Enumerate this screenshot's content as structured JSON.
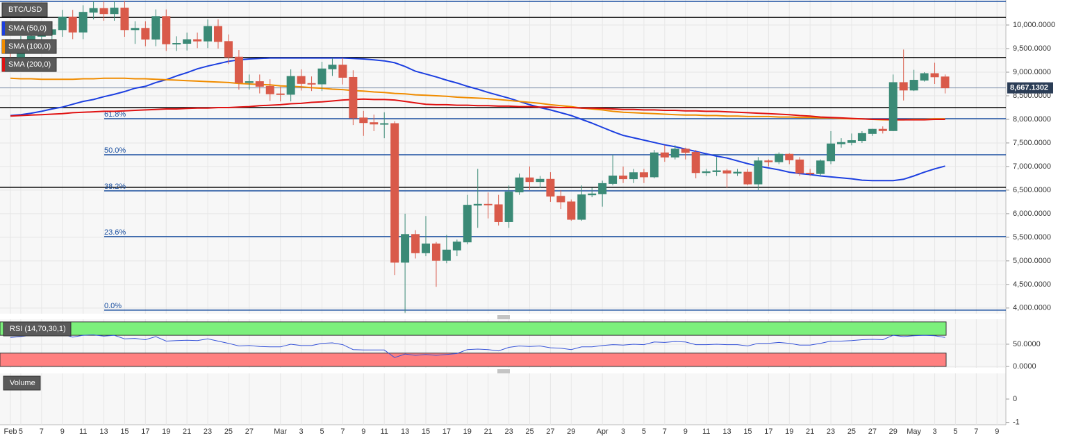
{
  "chart_data": [
    {
      "type": "candlestick",
      "title": "BTC/USD",
      "categories": [
        "Feb",
        "5",
        null,
        "7",
        null,
        "9",
        null,
        "11",
        null,
        "13",
        null,
        "15",
        null,
        "17",
        null,
        "19",
        null,
        "21",
        null,
        "23",
        null,
        "25",
        null,
        "27",
        null,
        null,
        "Mar",
        null,
        "3",
        null,
        "5",
        null,
        "7",
        null,
        "9",
        null,
        "11",
        null,
        "13",
        null,
        "15",
        null,
        "17",
        null,
        "19",
        null,
        "21",
        null,
        "23",
        null,
        "25",
        null,
        "27",
        null,
        "29",
        null,
        null,
        "Apr",
        null,
        "3",
        null,
        "5",
        null,
        "7",
        null,
        "9",
        null,
        "11",
        null,
        "13",
        null,
        "15",
        null,
        "17",
        null,
        "19",
        null,
        "21",
        null,
        "23",
        null,
        "25",
        null,
        "27",
        null,
        "29",
        null,
        "May",
        null,
        "3",
        null,
        "5",
        null,
        "7",
        null,
        "9"
      ],
      "open": [
        9290,
        9165,
        9615,
        9760,
        9800,
        9900,
        10170,
        9850,
        10270,
        10350,
        10240,
        10360,
        9900,
        9930,
        9700,
        10180,
        9600,
        9610,
        9690,
        9660,
        9970,
        9650,
        9320,
        8780,
        8800,
        8700,
        8540,
        8530,
        8910,
        8760,
        8750,
        9070,
        9150,
        8890,
        8030,
        7930,
        7900,
        7910,
        4970,
        5560,
        5170,
        5360,
        5010,
        5230,
        5400,
        6180,
        6200,
        6190,
        5830,
        6460,
        6760,
        6680,
        6730,
        6370,
        6250,
        5880,
        6400,
        6420,
        6640,
        6800,
        6740,
        6870,
        6780,
        7290,
        7200,
        7370,
        7300,
        6870,
        6890,
        6910,
        6860,
        6880,
        6630,
        7120,
        7100,
        7260,
        7140,
        6860,
        6850,
        7120,
        7480,
        7510,
        7550,
        7700,
        7790,
        7760,
        8780,
        8620,
        8830,
        8970,
        8900,
        null,
        null,
        null,
        null,
        null
      ],
      "high": [
        9440,
        9765,
        9910,
        9950,
        10050,
        10320,
        10320,
        10420,
        10500,
        10500,
        10510,
        10510,
        10080,
        10080,
        10330,
        10330,
        9760,
        9840,
        9840,
        10120,
        10120,
        9800,
        9470,
        8950,
        8950,
        8850,
        8690,
        9060,
        9060,
        8910,
        9220,
        9300,
        9300,
        9040,
        8180,
        8100,
        8150,
        7960,
        6000,
        5650,
        5950,
        5400,
        5550,
        5450,
        6400,
        6950,
        6450,
        6400,
        6600,
        6850,
        7000,
        6800,
        6880,
        6500,
        6300,
        6600,
        6550,
        6700,
        7250,
        7000,
        6950,
        6950,
        7350,
        7450,
        7450,
        7400,
        7350,
        6950,
        7200,
        6950,
        6950,
        6950,
        7200,
        7150,
        7300,
        7280,
        7200,
        6950,
        7150,
        7750,
        7600,
        7700,
        7750,
        7800,
        7850,
        8950,
        9480,
        9050,
        9000,
        9200,
        8950,
        null,
        null,
        null,
        null,
        null
      ],
      "low": [
        9015,
        9015,
        9465,
        9610,
        9650,
        9750,
        9700,
        9700,
        10120,
        10090,
        10090,
        9750,
        9600,
        9550,
        9550,
        9450,
        9450,
        9460,
        9510,
        9510,
        9500,
        9170,
        8630,
        8630,
        8550,
        8390,
        8380,
        8380,
        8610,
        8600,
        8600,
        8920,
        8740,
        7880,
        7650,
        7750,
        7600,
        4700,
        3900,
        5050,
        5100,
        4450,
        4950,
        5100,
        5350,
        5700,
        5900,
        5750,
        5700,
        6400,
        6500,
        6550,
        6250,
        6100,
        5850,
        5850,
        6350,
        6150,
        6600,
        6650,
        6650,
        6650,
        6750,
        7100,
        7150,
        7150,
        6750,
        6800,
        6800,
        6550,
        6800,
        6600,
        6500,
        7000,
        7050,
        7050,
        6800,
        6800,
        6800,
        7050,
        7400,
        7450,
        7500,
        7650,
        7700,
        7750,
        8400,
        8600,
        8800,
        8750,
        8550,
        null,
        null,
        null,
        null,
        null
      ],
      "close": [
        9165,
        9615,
        9760,
        9800,
        9900,
        10170,
        9850,
        10270,
        10350,
        10240,
        10360,
        9900,
        9930,
        9700,
        10180,
        9600,
        9610,
        9690,
        9660,
        9970,
        9650,
        9320,
        8780,
        8800,
        8700,
        8540,
        8530,
        8910,
        8760,
        8750,
        9070,
        9150,
        8890,
        8030,
        7930,
        7900,
        7910,
        4970,
        5560,
        5170,
        5360,
        5010,
        5230,
        5400,
        6180,
        6200,
        6190,
        5830,
        6460,
        6760,
        6680,
        6730,
        6370,
        6250,
        5880,
        6400,
        6420,
        6640,
        6800,
        6740,
        6870,
        6780,
        7290,
        7200,
        7370,
        7300,
        6870,
        6890,
        6910,
        6860,
        6880,
        6630,
        7120,
        7100,
        7260,
        7140,
        6860,
        6850,
        7120,
        7480,
        7510,
        7550,
        7700,
        7790,
        7760,
        8780,
        8620,
        8830,
        8970,
        8900,
        8667,
        null,
        null,
        null,
        null,
        null
      ],
      "up_color": "#3b8a76",
      "down_color": "#d95a4a",
      "ylim": [
        3880,
        10530
      ],
      "yticks": [
        {
          "value": 4000,
          "label": "4,000.0000"
        },
        {
          "value": 4500,
          "label": "4,500.0000"
        },
        {
          "value": 5000,
          "label": "5,000.0000"
        },
        {
          "value": 5500,
          "label": "5,500.0000"
        },
        {
          "value": 6000,
          "label": "6,000.0000"
        },
        {
          "value": 6500,
          "label": "6,500.0000"
        },
        {
          "value": 7000,
          "label": "7,000.0000"
        },
        {
          "value": 7500,
          "label": "7,500.0000"
        },
        {
          "value": 8000,
          "label": "8,000.0000"
        },
        {
          "value": 8500,
          "label": "8,500.0000"
        },
        {
          "value": 9000,
          "label": "9,000.0000"
        },
        {
          "value": 9500,
          "label": "9,500.0000"
        },
        {
          "value": 10000,
          "label": "10,000.0000"
        }
      ],
      "grid": true,
      "overlays": [
        {
          "name": "SMA (50,0)",
          "color": "#1c3fe0",
          "values": [
            8080,
            8100,
            8130,
            8170,
            8220,
            8260,
            8320,
            8380,
            8420,
            8480,
            8530,
            8590,
            8660,
            8700,
            8780,
            8840,
            8920,
            8990,
            9070,
            9130,
            9180,
            9230,
            9260,
            9280,
            9290,
            9300,
            9300,
            9300,
            9300,
            9300,
            9300,
            9300,
            9300,
            9290,
            9280,
            9260,
            9240,
            9200,
            9120,
            9020,
            8960,
            8900,
            8830,
            8770,
            8700,
            8640,
            8570,
            8510,
            8450,
            8380,
            8310,
            8250,
            8200,
            8140,
            8080,
            8000,
            7920,
            7830,
            7740,
            7660,
            7610,
            7560,
            7510,
            7460,
            7420,
            7370,
            7320,
            7270,
            7220,
            7180,
            7120,
            7060,
            7010,
            6970,
            6930,
            6880,
            6850,
            6830,
            6800,
            6780,
            6760,
            6740,
            6710,
            6700,
            6700,
            6700,
            6730,
            6800,
            6880,
            6950,
            7010,
            null,
            null,
            null,
            null,
            null
          ]
        },
        {
          "name": "SMA (100,0)",
          "color": "#f08c00",
          "values": [
            8870,
            8860,
            8860,
            8850,
            8850,
            8850,
            8850,
            8860,
            8860,
            8870,
            8870,
            8870,
            8860,
            8860,
            8850,
            8840,
            8830,
            8820,
            8810,
            8800,
            8790,
            8780,
            8760,
            8750,
            8740,
            8730,
            8710,
            8700,
            8690,
            8670,
            8660,
            8640,
            8630,
            8610,
            8600,
            8580,
            8570,
            8550,
            8540,
            8520,
            8510,
            8500,
            8490,
            8470,
            8460,
            8450,
            8440,
            8420,
            8400,
            8380,
            8360,
            8340,
            8310,
            8290,
            8270,
            8240,
            8220,
            8200,
            8170,
            8150,
            8140,
            8130,
            8120,
            8110,
            8100,
            8090,
            8090,
            8080,
            8080,
            8070,
            8070,
            8060,
            8060,
            8060,
            8050,
            8050,
            8040,
            8040,
            8030,
            8030,
            8020,
            8010,
            8010,
            8000,
            7990,
            7990,
            7990,
            8000,
            8000,
            8010,
            8010,
            null,
            null,
            null,
            null,
            null
          ]
        },
        {
          "name": "SMA (200,0)",
          "color": "#e01212",
          "values": [
            8070,
            8080,
            8090,
            8100,
            8110,
            8120,
            8140,
            8150,
            8160,
            8170,
            8170,
            8180,
            8190,
            8200,
            8210,
            8220,
            8220,
            8230,
            8240,
            8240,
            8250,
            8250,
            8260,
            8270,
            8290,
            8300,
            8310,
            8330,
            8340,
            8360,
            8370,
            8390,
            8410,
            8420,
            8430,
            8420,
            8420,
            8410,
            8380,
            8350,
            8320,
            8310,
            8310,
            8300,
            8300,
            8290,
            8290,
            8280,
            8280,
            8270,
            8270,
            8260,
            8260,
            8250,
            8250,
            8240,
            8240,
            8230,
            8220,
            8210,
            8210,
            8200,
            8200,
            8190,
            8190,
            8180,
            8180,
            8170,
            8170,
            8160,
            8150,
            8140,
            8130,
            8120,
            8110,
            8100,
            8080,
            8070,
            8050,
            8040,
            8030,
            8020,
            8010,
            8000,
            8000,
            7990,
            7990,
            7990,
            7990,
            8000,
            8000,
            null,
            null,
            null,
            null,
            null
          ]
        }
      ],
      "levels": [
        {
          "value": 10160,
          "color": "#000000"
        },
        {
          "value": 9310,
          "color": "#000000"
        },
        {
          "value": 8250,
          "color": "#000000"
        },
        {
          "value": 6560,
          "color": "#000000"
        },
        {
          "value": 10500,
          "color": "#1a4fa0"
        }
      ],
      "fib_levels": [
        {
          "label": "61.8%",
          "value": 8015
        },
        {
          "label": "50.0%",
          "value": 7250
        },
        {
          "label": "38.2%",
          "value": 6485
        },
        {
          "label": "23.6%",
          "value": 5515
        },
        {
          "label": "0.0%",
          "value": 3955
        }
      ],
      "fib_color": "#1a4fa0",
      "last_price": {
        "value": 8667.1302,
        "label": "8,667.1302"
      }
    },
    {
      "type": "line",
      "title": "RSI (14,70,30,1)",
      "color": "#3552d8",
      "values": [
        65,
        67,
        70,
        69,
        70,
        72,
        66,
        70,
        71,
        68,
        70,
        62,
        63,
        60,
        67,
        57,
        58,
        59,
        58,
        62,
        57,
        52,
        46,
        47,
        45,
        44,
        44,
        50,
        47,
        47,
        52,
        53,
        49,
        38,
        37,
        37,
        37,
        20,
        28,
        25,
        27,
        25,
        27,
        29,
        38,
        39,
        38,
        35,
        43,
        46,
        45,
        46,
        42,
        41,
        38,
        44,
        44,
        47,
        49,
        48,
        50,
        49,
        55,
        54,
        56,
        55,
        49,
        49,
        50,
        49,
        49,
        46,
        52,
        52,
        54,
        52,
        48,
        48,
        52,
        57,
        57,
        58,
        60,
        61,
        60,
        70,
        67,
        69,
        70,
        69,
        65,
        null,
        null,
        null,
        null,
        null
      ],
      "ylim": [
        -3,
        106
      ],
      "yticks": [
        {
          "value": 0,
          "label": "0.0000"
        },
        {
          "value": 50,
          "label": "50.0000"
        }
      ],
      "overbought": 70,
      "oversold": 30,
      "zone_top": 100,
      "overbought_color": "#7cf07c",
      "oversold_color": "#ff8080"
    },
    {
      "type": "volume",
      "title": "Volume",
      "ylim": [
        -1.1,
        1.1
      ],
      "yticks": [
        0,
        -1
      ]
    }
  ]
}
